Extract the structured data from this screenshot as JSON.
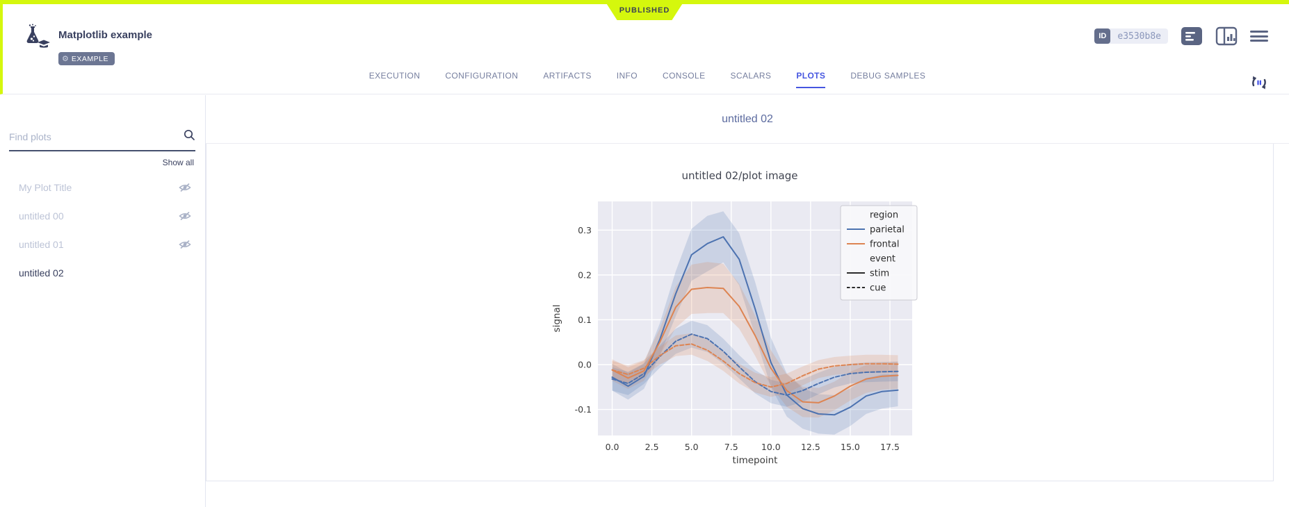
{
  "page": {
    "status": "PUBLISHED"
  },
  "header": {
    "title": "Matplotlib example",
    "badge": "EXAMPLE",
    "id_label": "ID",
    "id_value": "e3530b8e"
  },
  "tabs": [
    {
      "label": "EXECUTION",
      "active": false
    },
    {
      "label": "CONFIGURATION",
      "active": false
    },
    {
      "label": "ARTIFACTS",
      "active": false
    },
    {
      "label": "INFO",
      "active": false
    },
    {
      "label": "CONSOLE",
      "active": false
    },
    {
      "label": "SCALARS",
      "active": false
    },
    {
      "label": "PLOTS",
      "active": true
    },
    {
      "label": "DEBUG SAMPLES",
      "active": false
    }
  ],
  "sidebar": {
    "search_placeholder": "Find plots",
    "show_all": "Show all",
    "items": [
      {
        "label": "My Plot Title",
        "hidden": true,
        "active": false
      },
      {
        "label": "untitled 00",
        "hidden": true,
        "active": false
      },
      {
        "label": "untitled 01",
        "hidden": true,
        "active": false
      },
      {
        "label": "untitled 02",
        "hidden": false,
        "active": true
      }
    ]
  },
  "main": {
    "section_title": "untitled 02"
  },
  "colors": {
    "status_lime": "#d5f70d",
    "accent_blue": "#4656e0",
    "navy_text": "#39405f",
    "muted_text": "#bcc3d6",
    "series_blue": "#4c72b0",
    "series_orange": "#dd8452"
  },
  "chart_data": {
    "type": "line",
    "title": "untitled 02/plot image",
    "xlabel": "timepoint",
    "ylabel": "signal",
    "xlim": [
      -0.9,
      18.9
    ],
    "ylim": [
      -0.158,
      0.364
    ],
    "xticks": [
      0.0,
      2.5,
      5.0,
      7.5,
      10.0,
      12.5,
      15.0,
      17.5
    ],
    "yticks": [
      -0.1,
      0.0,
      0.1,
      0.2,
      0.3
    ],
    "grid": true,
    "plot_bg": "#eaeaf2",
    "grid_color": "#ffffff",
    "legend_position": "upper right",
    "x": [
      0,
      1,
      2,
      3,
      4,
      5,
      6,
      7,
      8,
      9,
      10,
      11,
      12,
      13,
      14,
      15,
      16,
      17,
      18
    ],
    "series": [
      {
        "name": "parietal",
        "event": "stim",
        "color": "#4c72b0",
        "dash": false,
        "values": [
          -0.028,
          -0.048,
          -0.026,
          0.056,
          0.158,
          0.245,
          0.27,
          0.285,
          0.235,
          0.125,
          0.005,
          -0.068,
          -0.098,
          -0.11,
          -0.112,
          -0.095,
          -0.07,
          -0.06,
          -0.057
        ],
        "ci": [
          0.03,
          0.03,
          0.028,
          0.036,
          0.05,
          0.058,
          0.062,
          0.057,
          0.058,
          0.06,
          0.055,
          0.048,
          0.045,
          0.044,
          0.044,
          0.042,
          0.04,
          0.038,
          0.036
        ]
      },
      {
        "name": "frontal",
        "event": "stim",
        "color": "#dd8452",
        "dash": false,
        "values": [
          -0.012,
          -0.03,
          -0.014,
          0.05,
          0.128,
          0.168,
          0.172,
          0.17,
          0.13,
          0.065,
          -0.008,
          -0.058,
          -0.083,
          -0.085,
          -0.07,
          -0.048,
          -0.032,
          -0.026,
          -0.024
        ],
        "ci": [
          0.024,
          0.024,
          0.022,
          0.03,
          0.046,
          0.055,
          0.057,
          0.055,
          0.05,
          0.045,
          0.04,
          0.036,
          0.034,
          0.033,
          0.032,
          0.032,
          0.031,
          0.03,
          0.03
        ]
      },
      {
        "name": "parietal",
        "event": "cue",
        "color": "#4c72b0",
        "dash": true,
        "values": [
          -0.032,
          -0.042,
          -0.02,
          0.018,
          0.052,
          0.068,
          0.058,
          0.03,
          -0.005,
          -0.038,
          -0.06,
          -0.068,
          -0.058,
          -0.042,
          -0.028,
          -0.02,
          -0.017,
          -0.016,
          -0.015
        ],
        "ci": [
          0.026,
          0.026,
          0.023,
          0.025,
          0.028,
          0.03,
          0.03,
          0.028,
          0.026,
          0.026,
          0.026,
          0.026,
          0.025,
          0.024,
          0.023,
          0.022,
          0.022,
          0.022,
          0.022
        ]
      },
      {
        "name": "frontal",
        "event": "cue",
        "color": "#dd8452",
        "dash": true,
        "values": [
          -0.012,
          -0.022,
          -0.008,
          0.02,
          0.042,
          0.046,
          0.032,
          0.008,
          -0.02,
          -0.04,
          -0.05,
          -0.042,
          -0.025,
          -0.01,
          -0.003,
          0.0,
          0.002,
          0.002,
          0.001
        ],
        "ci": [
          0.02,
          0.02,
          0.018,
          0.02,
          0.023,
          0.024,
          0.024,
          0.022,
          0.022,
          0.022,
          0.022,
          0.022,
          0.021,
          0.02,
          0.02,
          0.02,
          0.02,
          0.02,
          0.02
        ]
      }
    ],
    "legend_entries": [
      {
        "label": "region",
        "type": "header"
      },
      {
        "label": "parietal",
        "type": "line",
        "color": "#4c72b0",
        "dash": false
      },
      {
        "label": "frontal",
        "type": "line",
        "color": "#dd8452",
        "dash": false
      },
      {
        "label": "event",
        "type": "header"
      },
      {
        "label": "stim",
        "type": "line",
        "color": "#2b2b2b",
        "dash": false
      },
      {
        "label": "cue",
        "type": "line",
        "color": "#2b2b2b",
        "dash": true
      }
    ]
  }
}
